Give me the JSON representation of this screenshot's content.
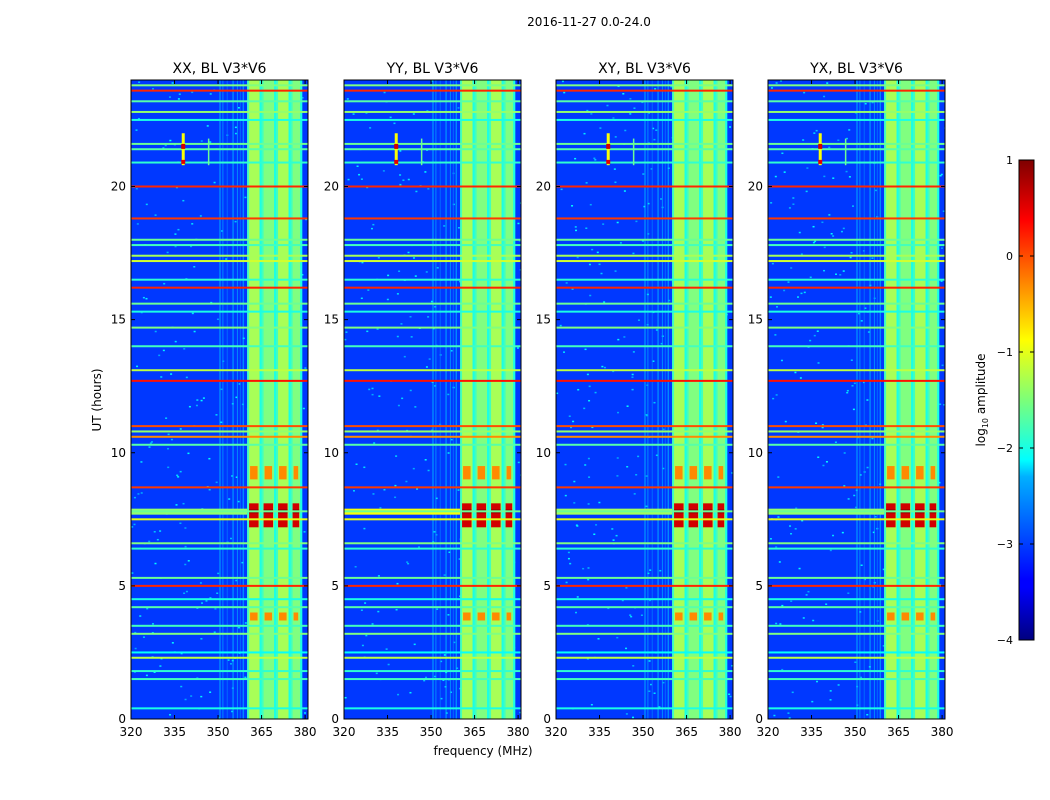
{
  "chart_data": {
    "type": "heatmap",
    "suptitle": "2016-11-27 0.0-24.0",
    "xlabel": "frequency (MHz)",
    "ylabel": "UT (hours)",
    "xlim": [
      320,
      381
    ],
    "ylim": [
      0,
      24
    ],
    "xticks": [
      320,
      335,
      350,
      365,
      380
    ],
    "yticks": [
      0,
      5,
      10,
      15,
      20
    ],
    "panels": [
      {
        "title": "XX, BL V3*V6",
        "broadband_strength": 0.25
      },
      {
        "title": "YY, BL V3*V6",
        "broadband_strength": 0.55
      },
      {
        "title": "XY, BL V3*V6",
        "broadband_strength": 0.3
      },
      {
        "title": "YX, BL V3*V6",
        "broadband_strength": 0.25
      }
    ],
    "colorbar": {
      "label": "log",
      "label_sub": "10",
      "label_rest": " amplitude",
      "range": [
        -4,
        1
      ],
      "ticks": [
        1,
        0,
        -1,
        -2,
        -3,
        -4
      ],
      "tick_labels": [
        "1",
        "0",
        "−1",
        "−2",
        "−3",
        "−4"
      ],
      "colormap": "jet"
    },
    "band_features": {
      "occupied_band_mhz": [
        360,
        379
      ],
      "subband_edges_mhz": [
        360,
        365,
        370,
        375,
        379
      ],
      "strong_rfi_hours": [
        7.2,
        8.1
      ],
      "moderate_rfi_hours": [
        [
          9.0,
          9.5
        ],
        [
          3.7,
          4.0
        ]
      ],
      "narrowband_source_mhz": 338,
      "narrowband_source_hours": [
        20.8,
        22.0
      ],
      "horizontal_line_hours": [
        0.4,
        1.5,
        1.8,
        2.3,
        2.5,
        3.2,
        3.5,
        4.2,
        4.5,
        5.0,
        5.3,
        6.4,
        6.6,
        7.5,
        7.8,
        8.7,
        10.3,
        10.6,
        10.8,
        11.0,
        12.7,
        13.1,
        14.0,
        14.7,
        15.3,
        15.6,
        16.2,
        16.5,
        17.2,
        17.4,
        17.8,
        18.0,
        18.8,
        20.0,
        20.9,
        21.4,
        21.6,
        22.5,
        22.8,
        23.2,
        23.6,
        23.8
      ],
      "horizontal_line_levels": [
        -2.0,
        -1.8,
        -1.9,
        -1.2,
        -2.1,
        -1.5,
        -1.8,
        -1.7,
        -2.0,
        0.2,
        -1.6,
        -1.9,
        -1.5,
        -1.0,
        -1.6,
        0.1,
        -1.7,
        -0.3,
        -1.4,
        0.0,
        0.3,
        -1.2,
        -1.8,
        -1.5,
        -2.0,
        -1.6,
        0.2,
        -1.9,
        -1.1,
        -1.3,
        -1.8,
        -1.6,
        0.1,
        0.2,
        -1.9,
        -1.7,
        -1.6,
        -2.0,
        -1.4,
        -1.7,
        0.2,
        -1.5
      ]
    }
  }
}
